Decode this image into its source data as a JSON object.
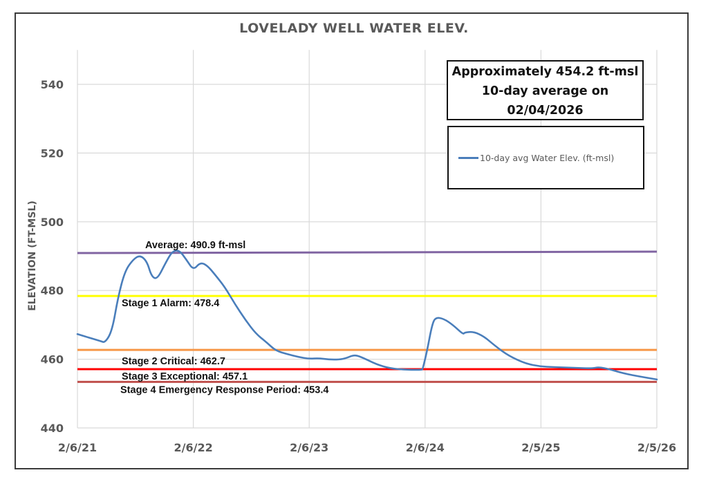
{
  "chart_data": {
    "type": "line",
    "title": "LOVELADY WELL WATER ELEV.",
    "xlabel": "",
    "ylabel": "ELEVATION (FT-MSL)",
    "ylim": [
      440,
      550
    ],
    "yticks": [
      440,
      460,
      480,
      500,
      520,
      540
    ],
    "x_unit": "years since 2/6/21",
    "xlim": [
      0,
      5
    ],
    "xticks": [
      {
        "x": 0,
        "label": "2/6/21"
      },
      {
        "x": 1,
        "label": "2/6/22"
      },
      {
        "x": 2,
        "label": "2/6/23"
      },
      {
        "x": 3,
        "label": "2/6/24"
      },
      {
        "x": 4,
        "label": "2/5/25"
      },
      {
        "x": 5,
        "label": "2/5/26"
      }
    ],
    "grid": true,
    "legend": "top-right",
    "series": [
      {
        "name": "10-day avg Water Elev. (ft-msl)",
        "color": "#4a7ebb",
        "points": [
          [
            0.0,
            467.3
          ],
          [
            0.078,
            466.5
          ],
          [
            0.197,
            465.3
          ],
          [
            0.24,
            464.8
          ],
          [
            0.3,
            468.4
          ],
          [
            0.35,
            478.0
          ],
          [
            0.41,
            485.7
          ],
          [
            0.48,
            489.0
          ],
          [
            0.54,
            490.3
          ],
          [
            0.6,
            488.5
          ],
          [
            0.64,
            484.0
          ],
          [
            0.69,
            483.3
          ],
          [
            0.76,
            488.0
          ],
          [
            0.82,
            491.5
          ],
          [
            0.88,
            491.7
          ],
          [
            0.94,
            489.0
          ],
          [
            1.0,
            485.9
          ],
          [
            1.06,
            488.2
          ],
          [
            1.12,
            487.3
          ],
          [
            1.19,
            484.5
          ],
          [
            1.27,
            481.1
          ],
          [
            1.36,
            476.0
          ],
          [
            1.45,
            471.4
          ],
          [
            1.54,
            467.4
          ],
          [
            1.63,
            465.0
          ],
          [
            1.71,
            462.5
          ],
          [
            1.81,
            461.5
          ],
          [
            1.9,
            460.7
          ],
          [
            2.0,
            460.1
          ],
          [
            2.08,
            460.3
          ],
          [
            2.17,
            459.9
          ],
          [
            2.26,
            459.9
          ],
          [
            2.32,
            460.3
          ],
          [
            2.39,
            461.3
          ],
          [
            2.46,
            460.5
          ],
          [
            2.58,
            458.5
          ],
          [
            2.7,
            457.3
          ],
          [
            2.85,
            456.9
          ],
          [
            2.97,
            456.9
          ],
          [
            2.98,
            457.1
          ],
          [
            3.02,
            462.9
          ],
          [
            3.06,
            470.0
          ],
          [
            3.09,
            472.2
          ],
          [
            3.16,
            471.8
          ],
          [
            3.24,
            470.0
          ],
          [
            3.33,
            467.2
          ],
          [
            3.34,
            467.8
          ],
          [
            3.42,
            468.0
          ],
          [
            3.51,
            466.6
          ],
          [
            3.6,
            464.0
          ],
          [
            3.72,
            461.0
          ],
          [
            3.87,
            458.7
          ],
          [
            3.99,
            457.9
          ],
          [
            4.11,
            457.7
          ],
          [
            4.29,
            457.5
          ],
          [
            4.44,
            457.3
          ],
          [
            4.5,
            457.7
          ],
          [
            4.59,
            457.1
          ],
          [
            4.71,
            455.9
          ],
          [
            4.86,
            454.9
          ],
          [
            5.0,
            454.1
          ]
        ]
      }
    ],
    "reference_lines": [
      {
        "name": "average",
        "label": "Average: 490.9 ft-msl",
        "value": 490.9,
        "value_end": 491.3,
        "color": "#8064a2"
      },
      {
        "name": "stage-1",
        "label": "Stage 1 Alarm: 478.4",
        "value": 478.4,
        "color": "#ffff00"
      },
      {
        "name": "stage-2",
        "label": "Stage 2 Critical: 462.7",
        "value": 462.7,
        "color": "#f79646"
      },
      {
        "name": "stage-3",
        "label": "Stage 3 Exceptional: 457.1",
        "value": 457.1,
        "color": "#ff0000"
      },
      {
        "name": "stage-4",
        "label": "Stage 4 Emergency Response Period: 453.4",
        "value": 453.4,
        "color": "#c0504d"
      }
    ],
    "annotation": {
      "lines": [
        "Approximately 454.2 ft-msl",
        "10-day average on",
        "02/04/2026"
      ]
    }
  }
}
